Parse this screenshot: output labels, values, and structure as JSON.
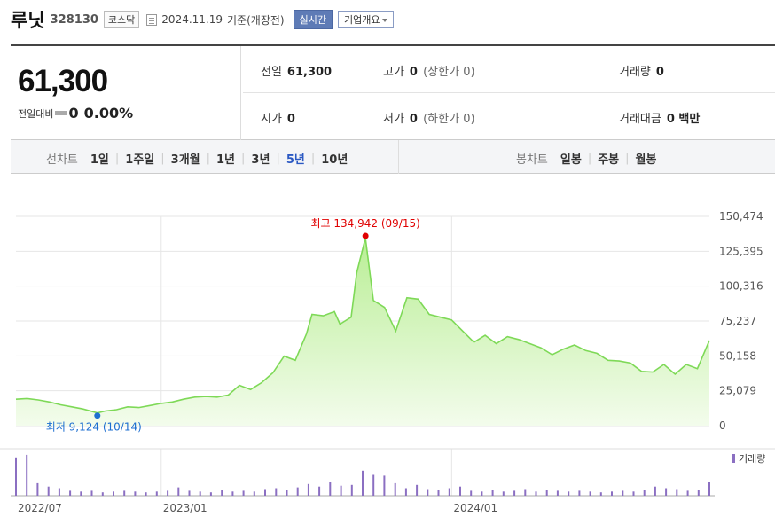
{
  "header": {
    "title": "루닛",
    "code": "328130",
    "market": "코스닥",
    "date": "2024.11.19",
    "date_suffix": "기준(개장전)",
    "realtime_label": "실시간",
    "company_label": "기업개요"
  },
  "summary": {
    "price": "61,300",
    "change_label": "전일대비",
    "change_value": "0",
    "change_pct": "0.00%",
    "stats": [
      {
        "label": "전일",
        "value": "61,300",
        "sub": ""
      },
      {
        "label": "고가",
        "value": "0",
        "sub": "(상한가 0)"
      },
      {
        "label": "거래량",
        "value": "0",
        "sub": ""
      },
      {
        "label": "시가",
        "value": "0",
        "sub": ""
      },
      {
        "label": "저가",
        "value": "0",
        "sub": "(하한가 0)"
      },
      {
        "label": "거래대금",
        "value": "0 백만",
        "sub": ""
      }
    ]
  },
  "tabs": {
    "line_label": "선차트",
    "line_periods": [
      "1일",
      "1주일",
      "3개월",
      "1년",
      "3년",
      "5년",
      "10년"
    ],
    "active_period": "5년",
    "candle_label": "봉차트",
    "candle_periods": [
      "일봉",
      "주봉",
      "월봉"
    ]
  },
  "colors": {
    "line": "#7ed957",
    "area_top": "#b9ee95",
    "area_bottom": "#f3fcec",
    "max_marker": "#e00000",
    "min_marker": "#1e6fd0",
    "volume": "#8b6fc2",
    "active_tab": "#2b59c3"
  },
  "chart_data": {
    "type": "area",
    "x": [
      "2022-07-04",
      "2022-07-18",
      "2022-08-01",
      "2022-08-15",
      "2022-08-29",
      "2022-09-12",
      "2022-09-26",
      "2022-10-14",
      "2022-10-24",
      "2022-11-07",
      "2022-11-21",
      "2022-12-05",
      "2022-12-19",
      "2023-01-02",
      "2023-01-16",
      "2023-01-30",
      "2023-02-13",
      "2023-02-27",
      "2023-03-13",
      "2023-03-27",
      "2023-04-10",
      "2023-04-24",
      "2023-05-08",
      "2023-05-22",
      "2023-06-05",
      "2023-06-19",
      "2023-07-03",
      "2023-07-10",
      "2023-07-24",
      "2023-08-07",
      "2023-08-14",
      "2023-08-28",
      "2023-09-04",
      "2023-09-15",
      "2023-09-25",
      "2023-10-09",
      "2023-10-23",
      "2023-11-06",
      "2023-11-20",
      "2023-12-04",
      "2023-12-18",
      "2024-01-01",
      "2024-01-15",
      "2024-01-29",
      "2024-02-12",
      "2024-02-26",
      "2024-03-11",
      "2024-03-25",
      "2024-04-08",
      "2024-04-22",
      "2024-05-06",
      "2024-05-20",
      "2024-06-03",
      "2024-06-17",
      "2024-07-01",
      "2024-07-15",
      "2024-07-29",
      "2024-08-12",
      "2024-08-26",
      "2024-09-09",
      "2024-09-23",
      "2024-10-07",
      "2024-10-21",
      "2024-11-04",
      "2024-11-19"
    ],
    "values": [
      19000,
      19500,
      18500,
      17000,
      15000,
      13500,
      12000,
      9124,
      10500,
      11500,
      13500,
      13000,
      14500,
      16000,
      17000,
      19000,
      20500,
      21000,
      20500,
      22000,
      29000,
      26000,
      31000,
      38000,
      50000,
      47000,
      66000,
      80000,
      79000,
      82000,
      73000,
      78000,
      110000,
      134942,
      90000,
      85000,
      68000,
      92000,
      91000,
      80000,
      78000,
      76000,
      68000,
      60000,
      65000,
      59000,
      64000,
      62000,
      59000,
      56000,
      51000,
      55000,
      58000,
      54000,
      52000,
      47000,
      46500,
      45000,
      39000,
      38500,
      44000,
      37000,
      44000,
      41000,
      61300
    ],
    "max": {
      "label": "최고",
      "value": "134,942",
      "date": "(09/15)"
    },
    "min": {
      "label": "최저",
      "value": "9,124",
      "date": "(10/14)"
    },
    "y_ticks": [
      "150,474",
      "125,395",
      "100,316",
      "75,237",
      "50,158",
      "25,079",
      "0"
    ],
    "ylim": [
      0,
      150474
    ],
    "x_tick_labels": [
      {
        "date": "2022-07-04",
        "label": "2022/07"
      },
      {
        "date": "2023-01-02",
        "label": "2023/01"
      },
      {
        "date": "2024-01-01",
        "label": "2024/01"
      }
    ],
    "volume_label": "거래량",
    "volume": [
      0.92,
      0.98,
      0.3,
      0.22,
      0.18,
      0.12,
      0.1,
      0.12,
      0.08,
      0.1,
      0.12,
      0.1,
      0.08,
      0.1,
      0.12,
      0.2,
      0.12,
      0.1,
      0.08,
      0.14,
      0.1,
      0.12,
      0.1,
      0.16,
      0.18,
      0.14,
      0.2,
      0.28,
      0.22,
      0.32,
      0.24,
      0.26,
      0.6,
      0.5,
      0.48,
      0.3,
      0.18,
      0.26,
      0.16,
      0.14,
      0.18,
      0.22,
      0.12,
      0.1,
      0.14,
      0.1,
      0.12,
      0.16,
      0.1,
      0.14,
      0.12,
      0.1,
      0.12,
      0.1,
      0.08,
      0.1,
      0.12,
      0.1,
      0.14,
      0.22,
      0.18,
      0.16,
      0.12,
      0.14,
      0.34
    ],
    "grid": true
  }
}
